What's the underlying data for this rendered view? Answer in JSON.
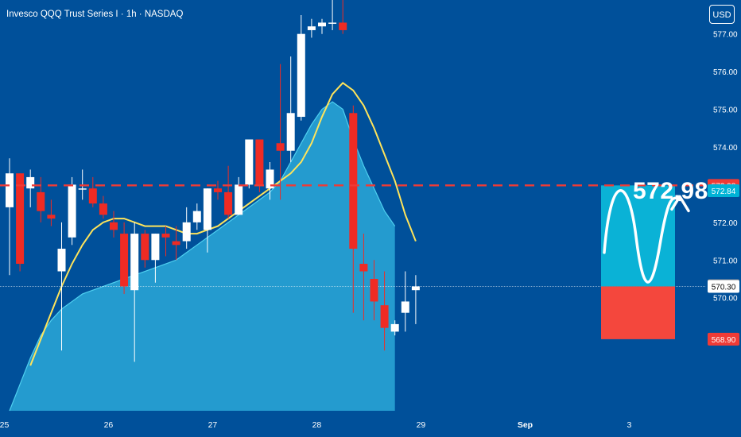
{
  "header": {
    "symbol_title": "Invesco QQQ Trust Series I · 1h · NASDAQ"
  },
  "currency_button": "USD",
  "chart_data": {
    "type": "candlestick",
    "y_axis": {
      "ticks": [
        "577.00",
        "576.00",
        "575.00",
        "574.00",
        "572.00",
        "571.00",
        "570.00"
      ],
      "tick_values": [
        577,
        576,
        575,
        574,
        572,
        571,
        570
      ],
      "range": [
        567.0,
        577.9
      ]
    },
    "x_axis": {
      "ticks": [
        "25",
        "26",
        "27",
        "28",
        "29",
        "Sep",
        "3"
      ],
      "tick_positions": [
        -0.5,
        9.5,
        19.5,
        29.5,
        39.5,
        49.5,
        59.5
      ]
    },
    "candles": [
      [
        572.4,
        573.7,
        570.6,
        573.3
      ],
      [
        573.3,
        573.3,
        570.7,
        570.9
      ],
      [
        572.9,
        573.4,
        572.4,
        573.2
      ],
      [
        572.8,
        573.2,
        572.0,
        572.3
      ],
      [
        572.2,
        572.6,
        571.9,
        572.1
      ],
      [
        570.7,
        572.0,
        568.6,
        571.3
      ],
      [
        571.6,
        573.2,
        571.4,
        573.0
      ],
      [
        572.9,
        573.4,
        572.6,
        572.9
      ],
      [
        572.9,
        573.2,
        572.4,
        572.5
      ],
      [
        572.5,
        572.7,
        572.1,
        572.2
      ],
      [
        572.0,
        572.3,
        571.6,
        571.8
      ],
      [
        571.7,
        572.0,
        570.1,
        570.3
      ],
      [
        570.2,
        572.0,
        568.3,
        571.7
      ],
      [
        571.7,
        571.8,
        570.8,
        571.0
      ],
      [
        571.0,
        571.7,
        570.4,
        571.7
      ],
      [
        571.7,
        571.9,
        571.1,
        571.6
      ],
      [
        571.5,
        571.9,
        571.0,
        571.4
      ],
      [
        571.5,
        572.4,
        571.3,
        572.0
      ],
      [
        572.0,
        572.5,
        571.8,
        572.3
      ],
      [
        571.8,
        572.9,
        571.2,
        572.9
      ],
      [
        572.9,
        573.1,
        572.6,
        572.8
      ],
      [
        572.8,
        573.5,
        572.1,
        572.2
      ],
      [
        572.2,
        573.2,
        572.2,
        573.0
      ],
      [
        573.0,
        574.2,
        572.9,
        574.2
      ],
      [
        574.2,
        574.2,
        572.8,
        573.0
      ],
      [
        572.9,
        573.6,
        572.6,
        573.4
      ],
      [
        574.1,
        576.2,
        572.6,
        573.9
      ],
      [
        573.9,
        576.4,
        573.6,
        574.9
      ],
      [
        574.8,
        577.5,
        574.7,
        577.0
      ],
      [
        577.1,
        577.4,
        576.9,
        577.2
      ],
      [
        577.2,
        577.4,
        577.0,
        577.3
      ],
      [
        577.3,
        577.9,
        577.1,
        577.3
      ],
      [
        577.3,
        577.9,
        577.0,
        577.1
      ],
      [
        574.9,
        575.1,
        569.6,
        571.3
      ],
      [
        570.9,
        571.7,
        569.4,
        570.7
      ],
      [
        570.5,
        571.0,
        569.4,
        569.9
      ],
      [
        569.8,
        570.7,
        568.6,
        569.2
      ],
      [
        569.1,
        569.4,
        569.0,
        569.3
      ],
      [
        569.6,
        570.7,
        569.1,
        569.9
      ],
      [
        570.2,
        570.6,
        569.3,
        570.3
      ]
    ],
    "ma_line": [
      568.2,
      568.9,
      569.6,
      570.3,
      570.9,
      571.4,
      571.8,
      572.0,
      572.1,
      572.1,
      572.0,
      571.9,
      571.9,
      571.9,
      571.8,
      571.7,
      571.7,
      571.8,
      571.9,
      572.1,
      572.3,
      572.5,
      572.7,
      572.9,
      573.1,
      573.3,
      573.6,
      574.1,
      574.8,
      575.4,
      575.7,
      575.5,
      575.1,
      574.5,
      573.8,
      573.1,
      572.2,
      571.5
    ],
    "area_band": [
      567.0,
      567.7,
      568.4,
      569.0,
      569.4,
      569.7,
      569.9,
      570.1,
      570.2,
      570.3,
      570.4,
      570.5,
      570.6,
      570.7,
      570.8,
      570.9,
      571.0,
      571.2,
      571.4,
      571.6,
      571.8,
      572.0,
      572.2,
      572.4,
      572.6,
      572.8,
      573.1,
      573.6,
      574.1,
      574.6,
      575.0,
      575.2,
      575.0,
      574.2,
      573.5,
      572.9,
      572.3,
      571.9
    ],
    "reference_price": 572.98,
    "current_price": 570.3,
    "projection": {
      "target": 572.98,
      "entry": 570.3,
      "stop": 568.9,
      "target_label": "572.98"
    },
    "price_labels": [
      {
        "text": "572.98",
        "value": 572.98,
        "color": "#ef3b36"
      },
      {
        "text": "572.84",
        "value": 572.84,
        "color": "#00b3d6"
      },
      {
        "text": "570.32",
        "value": 570.32,
        "color": "#7a7f8a"
      },
      {
        "text": "570.30",
        "value": 570.3,
        "color": "#ffffff"
      },
      {
        "text": "568.90",
        "value": 568.9,
        "color": "#ef3b36"
      }
    ],
    "colors": {
      "background": "#00509a",
      "up": "#ffffff",
      "down": "#ef2b24",
      "ma": "#ffe45a",
      "area": "#2aa8d8",
      "target_zone": "#0ab2d6",
      "stop_zone": "#f4473d",
      "dashed_line": "#ef3b36"
    }
  }
}
